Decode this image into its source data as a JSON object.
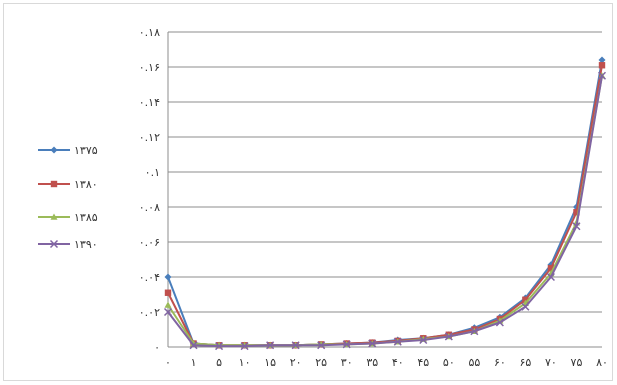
{
  "chart_data": {
    "type": "line",
    "categories": [
      "۰",
      "۱",
      "۵",
      "۱۰",
      "۱۵",
      "۲۰",
      "۲۵",
      "۳۰",
      "۳۵",
      "۴۰",
      "۴۵",
      "۵۰",
      "۵۵",
      "۶۰",
      "۶۵",
      "۷۰",
      "۷۵",
      "۸۰"
    ],
    "y_ticks": [
      "۰",
      "۰.۰۲",
      "۰.۰۴",
      "۰.۰۶",
      "۰.۰۸",
      "۰.۱",
      "۰.۱۲",
      "۰.۱۴",
      "۰.۱۶",
      "۰.۱۸"
    ],
    "ylim": [
      0,
      0.18
    ],
    "grid": true,
    "legend_position": "left",
    "series": [
      {
        "name": "۱۳۷۵",
        "color": "#4a7ebb",
        "marker": "diamond",
        "values": [
          0.04,
          0.002,
          0.001,
          0.001,
          0.001,
          0.001,
          0.0015,
          0.002,
          0.0025,
          0.004,
          0.005,
          0.007,
          0.011,
          0.017,
          0.028,
          0.047,
          0.08,
          0.164
        ]
      },
      {
        "name": "۱۳۸۰",
        "color": "#c0504d",
        "marker": "square",
        "values": [
          0.031,
          0.002,
          0.001,
          0.001,
          0.001,
          0.001,
          0.0015,
          0.002,
          0.0025,
          0.0035,
          0.005,
          0.007,
          0.01,
          0.016,
          0.027,
          0.045,
          0.077,
          0.161
        ]
      },
      {
        "name": "۱۳۸۵",
        "color": "#9bbb59",
        "marker": "triangle",
        "values": [
          0.024,
          0.002,
          0.001,
          0.001,
          0.001,
          0.001,
          0.0015,
          0.0015,
          0.002,
          0.003,
          0.0045,
          0.006,
          0.009,
          0.015,
          0.025,
          0.042,
          0.071,
          0.155
        ]
      },
      {
        "name": "۱۳۹۰",
        "color": "#8064a2",
        "marker": "x",
        "values": [
          0.02,
          0.001,
          0.0005,
          0.0005,
          0.001,
          0.001,
          0.001,
          0.0015,
          0.002,
          0.003,
          0.004,
          0.006,
          0.009,
          0.014,
          0.023,
          0.04,
          0.069,
          0.155
        ]
      }
    ]
  }
}
